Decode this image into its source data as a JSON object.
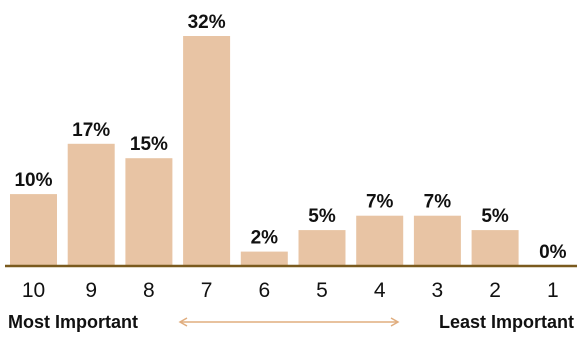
{
  "chart_data": {
    "type": "bar",
    "categories": [
      "10",
      "9",
      "8",
      "7",
      "6",
      "5",
      "4",
      "3",
      "2",
      "1"
    ],
    "values": [
      10,
      17,
      15,
      32,
      2,
      5,
      7,
      7,
      5,
      0
    ],
    "value_labels": [
      "10%",
      "17%",
      "15%",
      "32%",
      "2%",
      "5%",
      "7%",
      "7%",
      "5%",
      "0%"
    ],
    "ylim": [
      0,
      32
    ],
    "grid": false,
    "left_axis_label": "Most Important",
    "right_axis_label": "Least Important",
    "bar_color": "#e8c4a4",
    "baseline_color": "#7a5a1e",
    "arrow_color": "#e0ad7e"
  }
}
